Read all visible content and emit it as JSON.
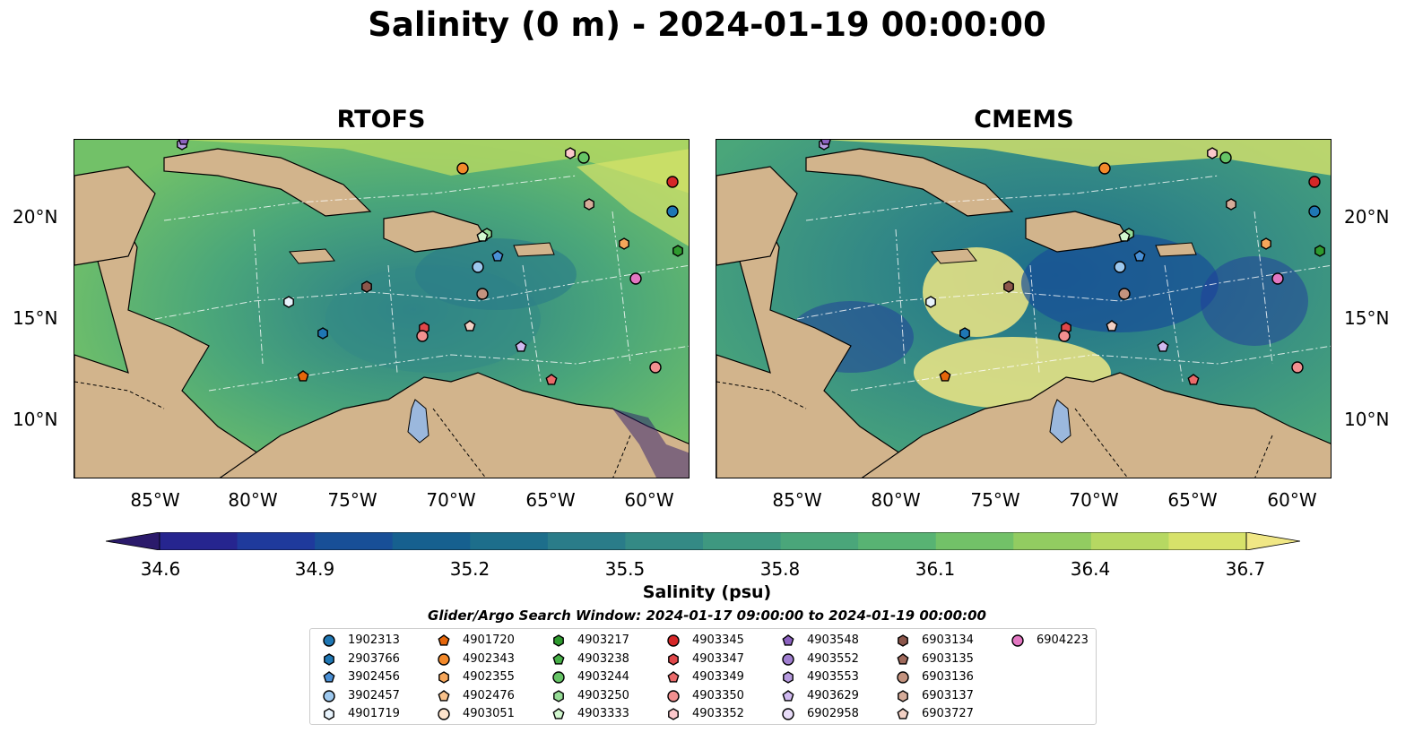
{
  "title": "Salinity (0 m) - 2024-01-19 00:00:00",
  "panels": [
    {
      "title": "RTOFS"
    },
    {
      "title": "CMEMS"
    }
  ],
  "lat_labels": [
    "20°N",
    "15°N",
    "10°N"
  ],
  "lon_labels": [
    "85°W",
    "80°W",
    "75°W",
    "70°W",
    "65°W",
    "60°W"
  ],
  "colorbar": {
    "label": "Salinity (psu)",
    "ticks": [
      "34.6",
      "34.9",
      "35.2",
      "35.5",
      "35.8",
      "36.1",
      "36.4",
      "36.7"
    ],
    "min": 34.6,
    "max": 36.7,
    "colors": [
      "#2b1a6b",
      "#26258f",
      "#1f3a9c",
      "#184f97",
      "#16608f",
      "#1d6e8b",
      "#2a7c89",
      "#348a85",
      "#3e9880",
      "#4aa67a",
      "#58b373",
      "#72c168",
      "#92cc61",
      "#b6d862",
      "#d7e26a",
      "#f0e785"
    ]
  },
  "window_label": "Glider/Argo Search Window: 2024-01-17 09:00:00 to 2024-01-19 00:00:00",
  "map_colors": {
    "land": "#d2b48c",
    "lake": "#9bb8dd",
    "ocean_deep": "#2b1a6b"
  },
  "legend": [
    {
      "id": "1902313",
      "color": "#1f77b4",
      "shape": "circle"
    },
    {
      "id": "2903766",
      "color": "#1f77b4",
      "shape": "hexagon"
    },
    {
      "id": "3902456",
      "color": "#4a90d6",
      "shape": "pentagon"
    },
    {
      "id": "3902457",
      "color": "#9dc8ee",
      "shape": "circle"
    },
    {
      "id": "4901719",
      "color": "#e8f3fc",
      "shape": "hexagon"
    },
    {
      "id": "4901720",
      "color": "#e6660a",
      "shape": "pentagon"
    },
    {
      "id": "4902343",
      "color": "#f3892a",
      "shape": "circle"
    },
    {
      "id": "4902355",
      "color": "#f6a65a",
      "shape": "hexagon"
    },
    {
      "id": "4902476",
      "color": "#f8c18b",
      "shape": "pentagon"
    },
    {
      "id": "4903051",
      "color": "#fde3cc",
      "shape": "circle"
    },
    {
      "id": "4903217",
      "color": "#2e9a2e",
      "shape": "hexagon"
    },
    {
      "id": "4903238",
      "color": "#47b047",
      "shape": "pentagon"
    },
    {
      "id": "4903244",
      "color": "#66c466",
      "shape": "circle"
    },
    {
      "id": "4903250",
      "color": "#96dc96",
      "shape": "hexagon"
    },
    {
      "id": "4903333",
      "color": "#d2f7cf",
      "shape": "pentagon"
    },
    {
      "id": "4903345",
      "color": "#d62728",
      "shape": "circle"
    },
    {
      "id": "4903347",
      "color": "#e0474a",
      "shape": "hexagon"
    },
    {
      "id": "4903349",
      "color": "#ea6a6a",
      "shape": "pentagon"
    },
    {
      "id": "4903350",
      "color": "#f29090",
      "shape": "circle"
    },
    {
      "id": "4903352",
      "color": "#fcc8cc",
      "shape": "hexagon"
    },
    {
      "id": "4903548",
      "color": "#8c62c0",
      "shape": "pentagon"
    },
    {
      "id": "4903552",
      "color": "#a07fd0",
      "shape": "circle"
    },
    {
      "id": "4903553",
      "color": "#b79be0",
      "shape": "hexagon"
    },
    {
      "id": "4903629",
      "color": "#d0b9f0",
      "shape": "pentagon"
    },
    {
      "id": "6902958",
      "color": "#e8dcf8",
      "shape": "circle"
    },
    {
      "id": "6903134",
      "color": "#8c564b",
      "shape": "hexagon"
    },
    {
      "id": "6903135",
      "color": "#a06a5c",
      "shape": "pentagon"
    },
    {
      "id": "6903136",
      "color": "#c4937f",
      "shape": "circle"
    },
    {
      "id": "6903137",
      "color": "#d6ac9a",
      "shape": "hexagon"
    },
    {
      "id": "6903727",
      "color": "#f2d0c4",
      "shape": "pentagon"
    },
    {
      "id": "6904223",
      "color": "#e377c2",
      "shape": "circle"
    }
  ]
}
